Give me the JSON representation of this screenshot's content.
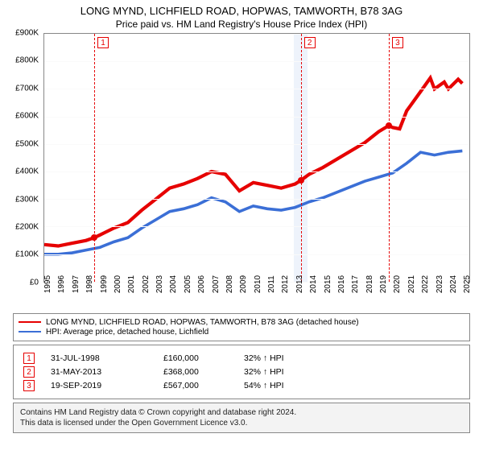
{
  "title_line1": "LONG MYND, LICHFIELD ROAD, HOPWAS, TAMWORTH, B78 3AG",
  "title_line2": "Price paid vs. HM Land Registry's House Price Index (HPI)",
  "chart": {
    "type": "line",
    "background_color": "#ffffff",
    "border_color": "#888888",
    "grid_color": "#fafafa",
    "xlim": [
      1995,
      2025.5
    ],
    "ylim": [
      0,
      900
    ],
    "yticks": [
      0,
      100,
      200,
      300,
      400,
      500,
      600,
      700,
      800,
      900
    ],
    "ytick_labels": [
      "£0",
      "£100K",
      "£200K",
      "£300K",
      "£400K",
      "£500K",
      "£600K",
      "£700K",
      "£800K",
      "£900K"
    ],
    "xticks": [
      1995,
      1996,
      1997,
      1998,
      1999,
      2000,
      2001,
      2002,
      2003,
      2004,
      2005,
      2006,
      2007,
      2008,
      2009,
      2010,
      2011,
      2012,
      2013,
      2014,
      2015,
      2016,
      2017,
      2018,
      2019,
      2020,
      2021,
      2022,
      2023,
      2024,
      2025
    ],
    "label_fontsize": 10,
    "series": [
      {
        "name": "property",
        "label": "LONG MYND, LICHFIELD ROAD, HOPWAS, TAMWORTH, B78 3AG (detached house)",
        "color": "#e60000",
        "line_width": 1.4,
        "points": [
          [
            1995,
            135
          ],
          [
            1996,
            130
          ],
          [
            1997,
            140
          ],
          [
            1998,
            150
          ],
          [
            1998.58,
            160
          ],
          [
            1999,
            170
          ],
          [
            2000,
            195
          ],
          [
            2001,
            215
          ],
          [
            2002,
            260
          ],
          [
            2003,
            300
          ],
          [
            2004,
            340
          ],
          [
            2005,
            355
          ],
          [
            2006,
            375
          ],
          [
            2007,
            400
          ],
          [
            2008,
            390
          ],
          [
            2009,
            330
          ],
          [
            2010,
            360
          ],
          [
            2011,
            350
          ],
          [
            2012,
            340
          ],
          [
            2013,
            355
          ],
          [
            2013.41,
            368
          ],
          [
            2014,
            390
          ],
          [
            2015,
            415
          ],
          [
            2016,
            445
          ],
          [
            2017,
            475
          ],
          [
            2018,
            505
          ],
          [
            2019,
            545
          ],
          [
            2019.72,
            567
          ],
          [
            2020,
            560
          ],
          [
            2020.5,
            555
          ],
          [
            2021,
            620
          ],
          [
            2022,
            690
          ],
          [
            2022.7,
            740
          ],
          [
            2023,
            700
          ],
          [
            2023.7,
            725
          ],
          [
            2024,
            700
          ],
          [
            2024.7,
            735
          ],
          [
            2025,
            720
          ]
        ]
      },
      {
        "name": "hpi",
        "label": "HPI: Average price, detached house, Lichfield",
        "color": "#3b6fd6",
        "line_width": 1.2,
        "points": [
          [
            1995,
            100
          ],
          [
            1996,
            100
          ],
          [
            1997,
            105
          ],
          [
            1998,
            115
          ],
          [
            1999,
            125
          ],
          [
            2000,
            145
          ],
          [
            2001,
            160
          ],
          [
            2002,
            195
          ],
          [
            2003,
            225
          ],
          [
            2004,
            255
          ],
          [
            2005,
            265
          ],
          [
            2006,
            280
          ],
          [
            2007,
            305
          ],
          [
            2008,
            290
          ],
          [
            2009,
            255
          ],
          [
            2010,
            275
          ],
          [
            2011,
            265
          ],
          [
            2012,
            260
          ],
          [
            2013,
            270
          ],
          [
            2014,
            290
          ],
          [
            2015,
            305
          ],
          [
            2016,
            325
          ],
          [
            2017,
            345
          ],
          [
            2018,
            365
          ],
          [
            2019,
            380
          ],
          [
            2020,
            395
          ],
          [
            2021,
            430
          ],
          [
            2022,
            470
          ],
          [
            2023,
            460
          ],
          [
            2024,
            470
          ],
          [
            2025,
            475
          ]
        ]
      }
    ],
    "markers": [
      {
        "n": "1",
        "x": 1998.58,
        "y": 160,
        "color": "#e60000",
        "band": false
      },
      {
        "n": "2",
        "x": 2013.41,
        "y": 368,
        "color": "#e60000",
        "band": true,
        "band_color": "#eef3fb"
      },
      {
        "n": "3",
        "x": 2019.72,
        "y": 567,
        "color": "#e60000",
        "band": false
      }
    ]
  },
  "legend": [
    {
      "color": "#e60000",
      "label": "LONG MYND, LICHFIELD ROAD, HOPWAS, TAMWORTH, B78 3AG (detached house)"
    },
    {
      "color": "#3b6fd6",
      "label": "HPI: Average price, detached house, Lichfield"
    }
  ],
  "events": [
    {
      "n": "1",
      "color": "#e60000",
      "date": "31-JUL-1998",
      "price": "£160,000",
      "delta": "32% ↑ HPI"
    },
    {
      "n": "2",
      "color": "#e60000",
      "date": "31-MAY-2013",
      "price": "£368,000",
      "delta": "32% ↑ HPI"
    },
    {
      "n": "3",
      "color": "#e60000",
      "date": "19-SEP-2019",
      "price": "£567,000",
      "delta": "54% ↑ HPI"
    }
  ],
  "footer_line1": "Contains HM Land Registry data © Crown copyright and database right 2024.",
  "footer_line2": "This data is licensed under the Open Government Licence v3.0."
}
